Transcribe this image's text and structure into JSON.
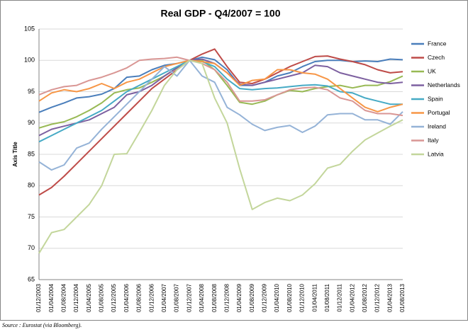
{
  "chart_data": {
    "type": "line",
    "title": "Real GDP - Q4/2007 = 100",
    "y_label": "Axis Title",
    "source": "Source : Eurostat (via Bloomberg).",
    "categories": [
      "01/12/2003",
      "01/04/2004",
      "01/08/2004",
      "01/12/2004",
      "01/04/2005",
      "01/08/2005",
      "01/12/2005",
      "01/04/2006",
      "01/08/2006",
      "01/12/2006",
      "01/04/2007",
      "01/08/2007",
      "01/12/2007",
      "01/04/2008",
      "01/08/2008",
      "01/12/2008",
      "01/04/2009",
      "01/08/2009",
      "01/12/2009",
      "01/04/2010",
      "01/08/2010",
      "01/12/2010",
      "01/04/2011",
      "01/08/2011",
      "01/12/2011",
      "01/04/2012",
      "01/08/2012",
      "01/12/2012",
      "01/04/2013",
      "01/08/2013"
    ],
    "series": [
      {
        "name": "France",
        "color": "#4a7ebb",
        "values": [
          91.7,
          92.5,
          93.2,
          94,
          94.2,
          94.6,
          95.5,
          97.3,
          97.5,
          98.5,
          99.2,
          99.5,
          100,
          100.5,
          100.1,
          98.5,
          96,
          96,
          96.5,
          97.5,
          98,
          99,
          99.8,
          100,
          100,
          99.8,
          99.9,
          99.8,
          100.2,
          100.1
        ]
      },
      {
        "name": "Czech",
        "color": "#be4b48",
        "values": [
          78.5,
          79.7,
          81.5,
          83.5,
          85.5,
          87.5,
          89.5,
          91.5,
          93.5,
          95.5,
          97,
          98.5,
          100,
          101,
          101.8,
          99,
          96.5,
          96.3,
          97,
          98,
          99,
          99.8,
          100.6,
          100.7,
          100.2,
          99.8,
          99.3,
          98.5,
          98,
          98.2
        ]
      },
      {
        "name": "UK",
        "color": "#98b954",
        "values": [
          89.2,
          89.8,
          90.2,
          91,
          92,
          93.2,
          94.8,
          95.3,
          95.6,
          96.5,
          97.5,
          98.8,
          100,
          100,
          98.5,
          96,
          93.3,
          93,
          93.5,
          94.5,
          95.2,
          95,
          95.5,
          95.8,
          96,
          95.6,
          96,
          96,
          96.6,
          97.5
        ]
      },
      {
        "name": "Netherlands",
        "color": "#7d60a0",
        "values": [
          88,
          89,
          89.5,
          90,
          90.5,
          91.5,
          92.5,
          94.5,
          95,
          96,
          97.5,
          98.8,
          100,
          100.2,
          99.5,
          98,
          96.2,
          96,
          96.5,
          97,
          97.5,
          98,
          99.2,
          99,
          98,
          97.5,
          97,
          96.5,
          96.3,
          96.5
        ]
      },
      {
        "name": "Spain",
        "color": "#46aac5",
        "values": [
          87,
          88,
          89,
          90,
          91,
          92,
          93.5,
          95,
          96,
          97,
          98,
          99,
          100,
          99.8,
          99,
          97,
          95.5,
          95.3,
          95.5,
          95.6,
          95.8,
          96,
          96.1,
          95.9,
          95,
          94.8,
          94,
          93.5,
          93,
          93
        ]
      },
      {
        "name": "Portugal",
        "color": "#f79646",
        "values": [
          93.5,
          94.8,
          95.3,
          95,
          95.5,
          96.3,
          95.5,
          96.5,
          97,
          98,
          99,
          99.5,
          100,
          99.8,
          99.5,
          98,
          96,
          96.8,
          97,
          98.5,
          98.5,
          98,
          97.8,
          97,
          95.5,
          94,
          92.5,
          91.8,
          92.5,
          93
        ]
      },
      {
        "name": "Ireland",
        "color": "#95b3d7",
        "values": [
          83.8,
          82.5,
          83.3,
          86,
          86.8,
          89,
          91,
          93,
          95,
          97,
          99,
          97.5,
          100,
          97.5,
          96.5,
          92.5,
          91.3,
          89.8,
          88.8,
          89.3,
          89.6,
          88.5,
          89.5,
          91.3,
          91.5,
          91.5,
          90.5,
          90.5,
          89.8,
          91.8
        ]
      },
      {
        "name": "Italy",
        "color": "#d99694",
        "values": [
          94.5,
          95.3,
          95.8,
          96,
          96.8,
          97.3,
          98,
          98.8,
          100,
          100.2,
          100.3,
          100.5,
          100,
          99.5,
          98.5,
          96.5,
          93.5,
          93.5,
          93.7,
          94.5,
          95.3,
          95.6,
          95.7,
          95.3,
          94,
          93.5,
          92,
          91.5,
          91.5,
          91.2
        ]
      },
      {
        "name": "Latvia",
        "color": "#c3d69b",
        "values": [
          69.2,
          72.5,
          73,
          75,
          77,
          80,
          85,
          85.1,
          88.5,
          92,
          96,
          98.5,
          100,
          99.5,
          94,
          90,
          82.7,
          76.2,
          77.3,
          78,
          77.6,
          78.5,
          80.3,
          82.8,
          83.4,
          85.5,
          87.3,
          88.4,
          89.5,
          90.5
        ]
      }
    ],
    "ylim": [
      65,
      105
    ],
    "yticks": [
      65,
      70,
      75,
      80,
      85,
      90,
      95,
      100,
      105
    ],
    "grid": true,
    "legend": "right"
  }
}
